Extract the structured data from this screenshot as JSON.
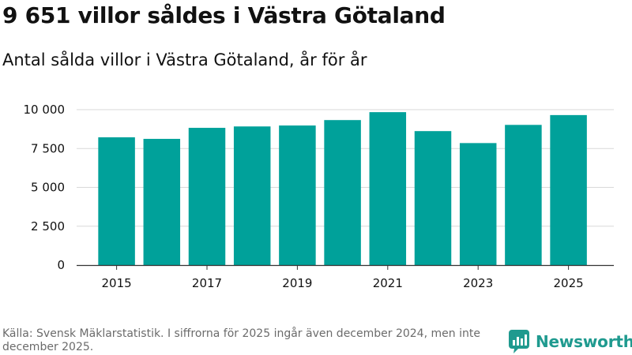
{
  "header": {
    "title": "9 651 villor såldes i Västra Götaland",
    "subtitle": "Antal sålda villor i Västra Götaland, år för år"
  },
  "chart_data": {
    "type": "bar",
    "title": "9 651 villor såldes i Västra Götaland",
    "subtitle": "Antal sålda villor i Västra Götaland, år för år",
    "xlabel": "",
    "ylabel": "",
    "categories": [
      "2015",
      "2016",
      "2017",
      "2018",
      "2019",
      "2020",
      "2021",
      "2022",
      "2023",
      "2024",
      "2025"
    ],
    "values": [
      8220,
      8120,
      8830,
      8920,
      8980,
      9330,
      9840,
      8620,
      7850,
      9020,
      9651
    ],
    "x_tick_labels": [
      "2015",
      "2017",
      "2019",
      "2021",
      "2023",
      "2025"
    ],
    "y_ticks": [
      0,
      2500,
      5000,
      7500,
      10000
    ],
    "y_tick_labels": [
      "0",
      "2 500",
      "5 000",
      "7 500",
      "10 000"
    ],
    "ylim": [
      0,
      10000
    ],
    "grid": true,
    "bar_color": "#00a19a"
  },
  "footer": {
    "source": "Källa: Svensk Mäklarstatistik. I siffrorna för 2025 ingår även december 2024, men inte december 2025."
  },
  "brand": {
    "name": "Newsworthy",
    "color": "#1f9a8f",
    "icon": "newsworthy-logo-icon"
  }
}
